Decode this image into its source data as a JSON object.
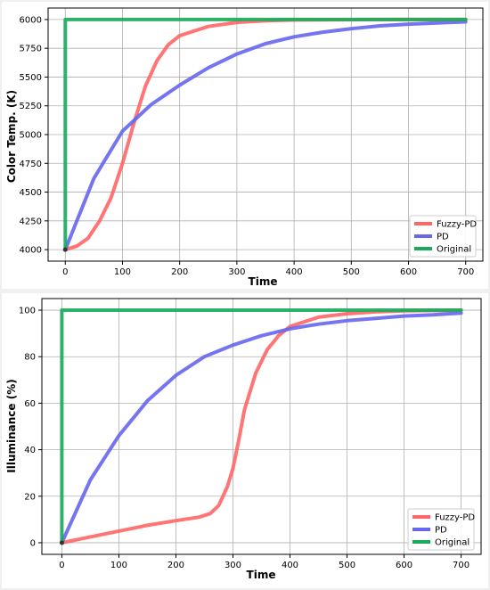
{
  "charts": [
    {
      "type": "line",
      "xlabel": "Time",
      "ylabel": "Color Temp. (K)",
      "xlim": [
        -30,
        730
      ],
      "ylim": [
        3900,
        6100
      ],
      "xticks": [
        0,
        100,
        200,
        300,
        400,
        500,
        600,
        700
      ],
      "yticks": [
        4000,
        4250,
        4500,
        4750,
        5000,
        5250,
        5500,
        5750,
        6000
      ],
      "grid": true,
      "legend_position": "lower-right",
      "series": [
        {
          "name": "Fuzzy-PD",
          "color": "#ff6666",
          "x": [
            0,
            20,
            40,
            60,
            80,
            100,
            120,
            140,
            160,
            180,
            200,
            250,
            300,
            350,
            400,
            500,
            600,
            700
          ],
          "values": [
            4000,
            4030,
            4100,
            4250,
            4450,
            4750,
            5100,
            5420,
            5640,
            5780,
            5860,
            5940,
            5975,
            5990,
            5996,
            5999,
            6000,
            6000
          ]
        },
        {
          "name": "PD",
          "color": "#6666ee",
          "x": [
            0,
            50,
            100,
            150,
            200,
            250,
            300,
            350,
            400,
            450,
            500,
            550,
            600,
            650,
            700
          ],
          "values": [
            4000,
            4620,
            5030,
            5260,
            5430,
            5580,
            5700,
            5790,
            5850,
            5890,
            5920,
            5945,
            5960,
            5970,
            5980
          ]
        },
        {
          "name": "Original",
          "color": "#1aab5a",
          "x": [
            0,
            0,
            700
          ],
          "values": [
            4000,
            6000,
            6000
          ]
        }
      ]
    },
    {
      "type": "line",
      "xlabel": "Time",
      "ylabel": "Illuminance (%)",
      "xlim": [
        -35,
        735
      ],
      "ylim": [
        -5,
        105
      ],
      "xticks": [
        0,
        100,
        200,
        300,
        400,
        500,
        600,
        700
      ],
      "yticks": [
        0,
        20,
        40,
        60,
        80,
        100
      ],
      "grid": true,
      "legend_position": "lower-right",
      "series": [
        {
          "name": "Fuzzy-PD",
          "color": "#ff6666",
          "x": [
            0,
            50,
            100,
            150,
            200,
            240,
            260,
            275,
            290,
            300,
            310,
            320,
            340,
            360,
            380,
            400,
            450,
            500,
            550,
            600,
            700
          ],
          "values": [
            0,
            2.5,
            5,
            7.5,
            9.5,
            11,
            12.5,
            16,
            24,
            32,
            44,
            57,
            73,
            83,
            89,
            93,
            97,
            98.5,
            99.3,
            99.7,
            100
          ]
        },
        {
          "name": "PD",
          "color": "#6666ee",
          "x": [
            0,
            50,
            100,
            150,
            200,
            250,
            300,
            350,
            400,
            450,
            500,
            550,
            600,
            650,
            700
          ],
          "values": [
            0,
            27,
            46,
            61,
            72,
            80,
            85,
            89,
            92,
            94,
            95.5,
            96.5,
            97.5,
            98,
            98.8
          ]
        },
        {
          "name": "Original",
          "color": "#1aab5a",
          "x": [
            0,
            0,
            700
          ],
          "values": [
            0,
            100,
            100
          ]
        }
      ]
    }
  ],
  "chart_data": [
    {
      "type": "line",
      "xlabel": "Time",
      "ylabel": "Color Temp. (K)",
      "xlim": [
        -30,
        730
      ],
      "ylim": [
        3900,
        6100
      ],
      "grid": true,
      "legend": [
        "Fuzzy-PD",
        "PD",
        "Original"
      ]
    },
    {
      "type": "line",
      "xlabel": "Time",
      "ylabel": "Illuminance (%)",
      "xlim": [
        -35,
        735
      ],
      "ylim": [
        -5,
        105
      ],
      "grid": true,
      "legend": [
        "Fuzzy-PD",
        "PD",
        "Original"
      ]
    }
  ]
}
